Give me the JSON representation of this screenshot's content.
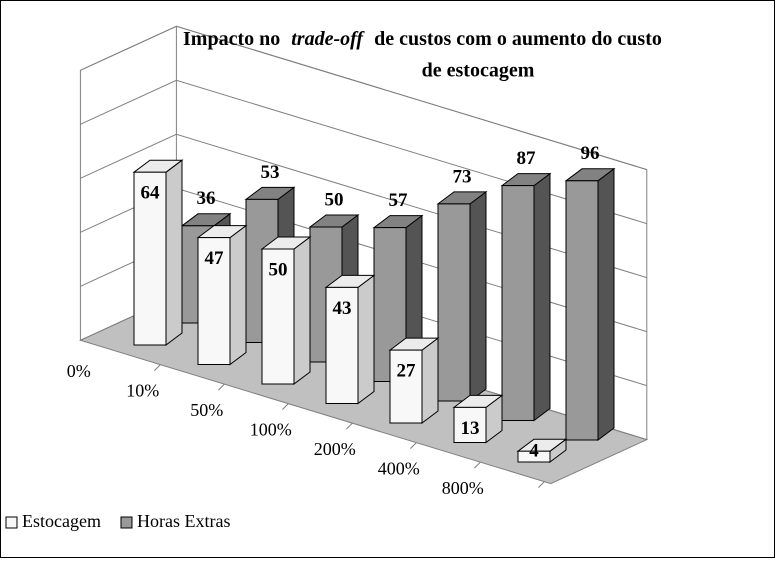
{
  "chart_data": {
    "type": "bar3d",
    "title": [
      "Impacto no",
      "trade-off",
      "de custos com o aumento do custo",
      "de estocagem"
    ],
    "categories": [
      "0%",
      "10%",
      "50%",
      "100%",
      "200%",
      "400%",
      "800%"
    ],
    "series": [
      {
        "name": "Estocagem",
        "color": "#f8f8f8",
        "values": [
          64,
          47,
          50,
          43,
          27,
          13,
          4
        ]
      },
      {
        "name": "Horas Extras",
        "color": "#999999",
        "values": [
          36,
          53,
          50,
          57,
          73,
          87,
          96
        ]
      }
    ],
    "ylim": [
      0,
      100
    ],
    "yticks": [
      0,
      20,
      40,
      60,
      80,
      100
    ],
    "grid": true
  }
}
